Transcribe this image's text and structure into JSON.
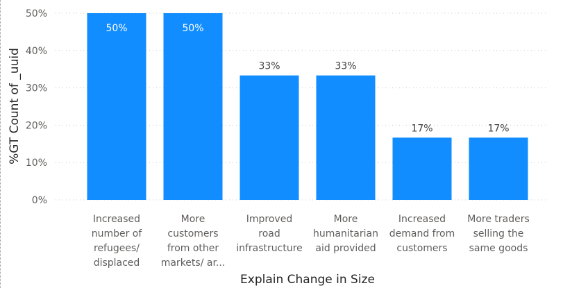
{
  "chart_data": {
    "type": "bar",
    "title": "",
    "xlabel": "Explain Change in Size",
    "ylabel": "%GT Count of _uuid",
    "ylim": [
      0,
      50
    ],
    "yticks": [
      "0%",
      "10%",
      "20%",
      "30%",
      "40%",
      "50%"
    ],
    "ytick_values": [
      0,
      10,
      20,
      30,
      40,
      50
    ],
    "grid": true,
    "categories": [
      [
        "Increased",
        "number of",
        "refugees/",
        "displaced"
      ],
      [
        "More",
        "customers",
        "from other",
        "markets/ ar..."
      ],
      [
        "Improved",
        "road",
        "infrastructure"
      ],
      [
        "More",
        "humanitarian",
        "aid provided"
      ],
      [
        "Increased",
        "demand from",
        "customers"
      ],
      [
        "More traders",
        "selling the",
        "same goods"
      ]
    ],
    "values": [
      50,
      50,
      33.33,
      33.33,
      16.67,
      16.67
    ],
    "data_labels": [
      "50%",
      "50%",
      "33%",
      "33%",
      "17%",
      "17%"
    ],
    "bar_color": "#118DFF",
    "label_inside_color": "#ffffff",
    "label_outside_color": "#404040"
  }
}
